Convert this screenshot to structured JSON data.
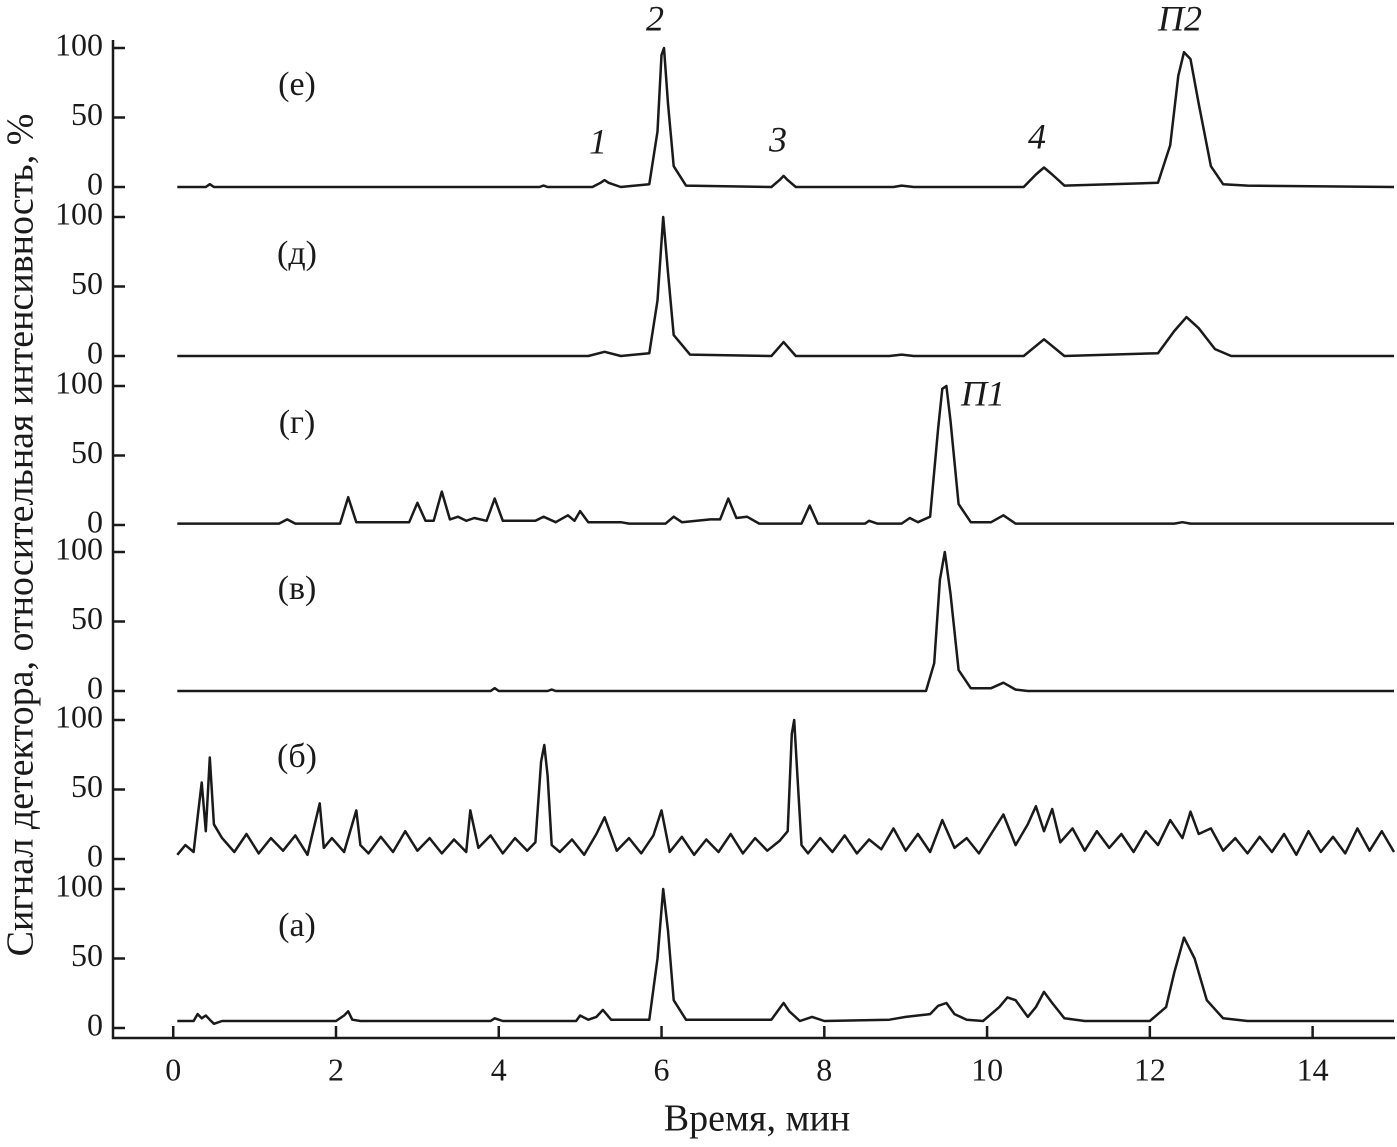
{
  "chart_data": [
    {
      "type": "line",
      "label": "(е)",
      "ylim": [
        0,
        100
      ],
      "yticks": [
        0,
        50,
        100
      ],
      "annotations": [
        "1",
        "2",
        "3",
        "4",
        "П2"
      ],
      "x": [
        0.05,
        0.4,
        0.45,
        0.5,
        4.5,
        4.55,
        4.6,
        5.15,
        5.25,
        5.3,
        5.35,
        5.5,
        5.85,
        5.95,
        6.0,
        6.03,
        6.08,
        6.15,
        6.3,
        7.35,
        7.45,
        7.5,
        7.55,
        7.65,
        8.85,
        8.95,
        9.1,
        10.45,
        10.6,
        10.7,
        10.8,
        10.95,
        12.1,
        12.25,
        12.35,
        12.42,
        12.5,
        12.6,
        12.75,
        12.9,
        13.2,
        15.0
      ],
      "values": [
        0,
        0,
        2,
        0,
        0,
        1,
        0,
        0,
        3,
        5,
        3,
        0,
        2,
        40,
        95,
        100,
        60,
        15,
        1,
        0,
        5,
        8,
        5,
        0,
        0,
        1,
        0,
        0,
        9,
        14,
        9,
        1,
        3,
        30,
        80,
        97,
        92,
        60,
        15,
        2,
        1,
        0
      ],
      "color": "#1a1a1a"
    },
    {
      "type": "line",
      "label": "(д)",
      "ylim": [
        0,
        100
      ],
      "yticks": [
        0,
        50,
        100
      ],
      "x": [
        0.05,
        5.1,
        5.3,
        5.5,
        5.85,
        5.95,
        6.02,
        6.08,
        6.15,
        6.35,
        7.35,
        7.5,
        7.65,
        8.8,
        8.95,
        9.1,
        10.45,
        10.7,
        10.95,
        12.1,
        12.3,
        12.45,
        12.6,
        12.8,
        13.0,
        15.0
      ],
      "values": [
        0,
        0,
        3,
        0,
        2,
        40,
        100,
        60,
        15,
        1,
        0,
        10,
        0,
        0,
        1,
        0,
        0,
        12,
        0,
        2,
        18,
        28,
        20,
        5,
        0,
        0
      ],
      "color": "#1a1a1a"
    },
    {
      "type": "line",
      "label": "(г)",
      "ylim": [
        0,
        100
      ],
      "yticks": [
        0,
        50,
        100
      ],
      "annotations": [
        "П1"
      ],
      "x": [
        0.05,
        1.3,
        1.4,
        1.5,
        2.05,
        2.15,
        2.25,
        2.9,
        3.0,
        3.1,
        3.2,
        3.3,
        3.4,
        3.5,
        3.6,
        3.7,
        3.85,
        3.95,
        4.05,
        4.45,
        4.55,
        4.7,
        4.85,
        4.93,
        5.0,
        5.1,
        5.5,
        5.6,
        6.05,
        6.15,
        6.25,
        6.6,
        6.72,
        6.82,
        6.92,
        7.05,
        7.2,
        7.72,
        7.82,
        7.92,
        8.5,
        8.55,
        8.65,
        8.95,
        9.05,
        9.15,
        9.3,
        9.4,
        9.45,
        9.5,
        9.55,
        9.65,
        9.8,
        10.05,
        10.2,
        10.35,
        12.3,
        12.4,
        12.5,
        15.0
      ],
      "values": [
        1,
        1,
        4,
        1,
        1,
        20,
        2,
        2,
        16,
        3,
        3,
        24,
        4,
        6,
        3,
        5,
        3,
        19,
        3,
        3,
        6,
        2,
        7,
        3,
        10,
        2,
        2,
        1,
        1,
        6,
        2,
        4,
        4,
        19,
        5,
        6,
        1,
        1,
        14,
        1,
        1,
        3,
        1,
        1,
        5,
        2,
        6,
        70,
        98,
        100,
        75,
        15,
        2,
        2,
        7,
        1,
        1,
        2,
        1,
        1
      ],
      "color": "#1a1a1a"
    },
    {
      "type": "line",
      "label": "(в)",
      "ylim": [
        0,
        100
      ],
      "yticks": [
        0,
        50,
        100
      ],
      "x": [
        0.05,
        3.9,
        3.95,
        4.0,
        4.6,
        4.65,
        4.7,
        9.25,
        9.35,
        9.42,
        9.48,
        9.55,
        9.65,
        9.8,
        10.05,
        10.2,
        10.35,
        10.5,
        15.0
      ],
      "values": [
        0,
        0,
        2,
        0,
        0,
        1,
        0,
        0,
        20,
        80,
        100,
        70,
        15,
        2,
        2,
        6,
        1,
        0,
        0
      ],
      "color": "#1a1a1a"
    },
    {
      "type": "line",
      "label": "(б)",
      "ylim": [
        0,
        100
      ],
      "yticks": [
        0,
        50,
        100
      ],
      "x": [
        0.05,
        0.15,
        0.25,
        0.3,
        0.35,
        0.4,
        0.45,
        0.5,
        0.6,
        0.75,
        0.9,
        1.05,
        1.2,
        1.35,
        1.5,
        1.65,
        1.8,
        1.85,
        1.95,
        2.1,
        2.25,
        2.3,
        2.4,
        2.55,
        2.7,
        2.85,
        3.0,
        3.15,
        3.3,
        3.45,
        3.6,
        3.65,
        3.75,
        3.9,
        4.05,
        4.2,
        4.35,
        4.45,
        4.52,
        4.56,
        4.6,
        4.65,
        4.75,
        4.9,
        5.05,
        5.2,
        5.3,
        5.45,
        5.6,
        5.75,
        5.9,
        6.0,
        6.1,
        6.25,
        6.4,
        6.55,
        6.7,
        6.85,
        7.0,
        7.15,
        7.3,
        7.45,
        7.55,
        7.6,
        7.63,
        7.67,
        7.72,
        7.8,
        7.95,
        8.1,
        8.25,
        8.4,
        8.55,
        8.7,
        8.85,
        9.0,
        9.15,
        9.3,
        9.45,
        9.6,
        9.75,
        9.9,
        10.05,
        10.2,
        10.35,
        10.5,
        10.6,
        10.7,
        10.8,
        10.9,
        11.05,
        11.2,
        11.35,
        11.5,
        11.65,
        11.8,
        11.95,
        12.1,
        12.25,
        12.4,
        12.5,
        12.6,
        12.75,
        12.9,
        13.05,
        13.2,
        13.35,
        13.5,
        13.65,
        13.8,
        13.95,
        14.1,
        14.25,
        14.4,
        14.55,
        14.7,
        14.85,
        15.0
      ],
      "values": [
        3,
        10,
        5,
        30,
        55,
        20,
        73,
        25,
        15,
        5,
        18,
        4,
        15,
        6,
        17,
        3,
        40,
        8,
        15,
        5,
        35,
        10,
        4,
        16,
        5,
        20,
        6,
        15,
        4,
        14,
        5,
        35,
        8,
        17,
        4,
        15,
        6,
        12,
        70,
        82,
        60,
        10,
        5,
        14,
        3,
        18,
        30,
        6,
        15,
        4,
        17,
        35,
        5,
        16,
        3,
        14,
        5,
        18,
        4,
        15,
        6,
        13,
        20,
        90,
        100,
        60,
        10,
        4,
        15,
        5,
        17,
        4,
        14,
        7,
        22,
        6,
        18,
        5,
        28,
        8,
        15,
        4,
        18,
        32,
        10,
        25,
        38,
        20,
        36,
        12,
        22,
        6,
        20,
        8,
        18,
        5,
        20,
        10,
        28,
        15,
        34,
        18,
        22,
        6,
        15,
        4,
        16,
        5,
        18,
        3,
        20,
        5,
        16,
        4,
        22,
        6,
        20,
        5
      ],
      "color": "#1a1a1a"
    },
    {
      "type": "line",
      "label": "(а)",
      "ylim": [
        0,
        100
      ],
      "yticks": [
        0,
        50,
        100
      ],
      "x": [
        0.05,
        0.25,
        0.3,
        0.35,
        0.4,
        0.45,
        0.5,
        0.6,
        2.0,
        2.1,
        2.15,
        2.2,
        2.3,
        3.9,
        3.95,
        4.05,
        4.95,
        5.0,
        5.1,
        5.2,
        5.28,
        5.38,
        5.85,
        5.95,
        6.02,
        6.08,
        6.15,
        6.3,
        7.35,
        7.45,
        7.5,
        7.57,
        7.7,
        7.85,
        8.0,
        8.8,
        9.0,
        9.3,
        9.4,
        9.5,
        9.6,
        9.75,
        9.95,
        10.15,
        10.25,
        10.35,
        10.5,
        10.6,
        10.7,
        10.8,
        10.95,
        11.2,
        12.0,
        12.2,
        12.3,
        12.42,
        12.55,
        12.7,
        12.9,
        13.2,
        15.0
      ],
      "values": [
        5,
        5,
        10,
        7,
        9,
        6,
        3,
        5,
        5,
        9,
        12,
        6,
        5,
        5,
        7,
        5,
        5,
        9,
        6,
        8,
        13,
        6,
        6,
        50,
        100,
        70,
        20,
        6,
        6,
        14,
        18,
        12,
        5,
        8,
        5,
        6,
        8,
        10,
        16,
        18,
        10,
        6,
        5,
        15,
        22,
        20,
        8,
        15,
        26,
        18,
        7,
        5,
        5,
        15,
        40,
        65,
        50,
        20,
        7,
        5,
        5
      ],
      "color": "#1a1a1a",
      "xlim": [
        -0.74,
        15.0
      ],
      "xticks": [
        0,
        2,
        4,
        6,
        8,
        10,
        12,
        14
      ],
      "xlabel": "Время, мин",
      "ylabel": "Сигнал детектора, относительная интенсивность, %"
    }
  ]
}
